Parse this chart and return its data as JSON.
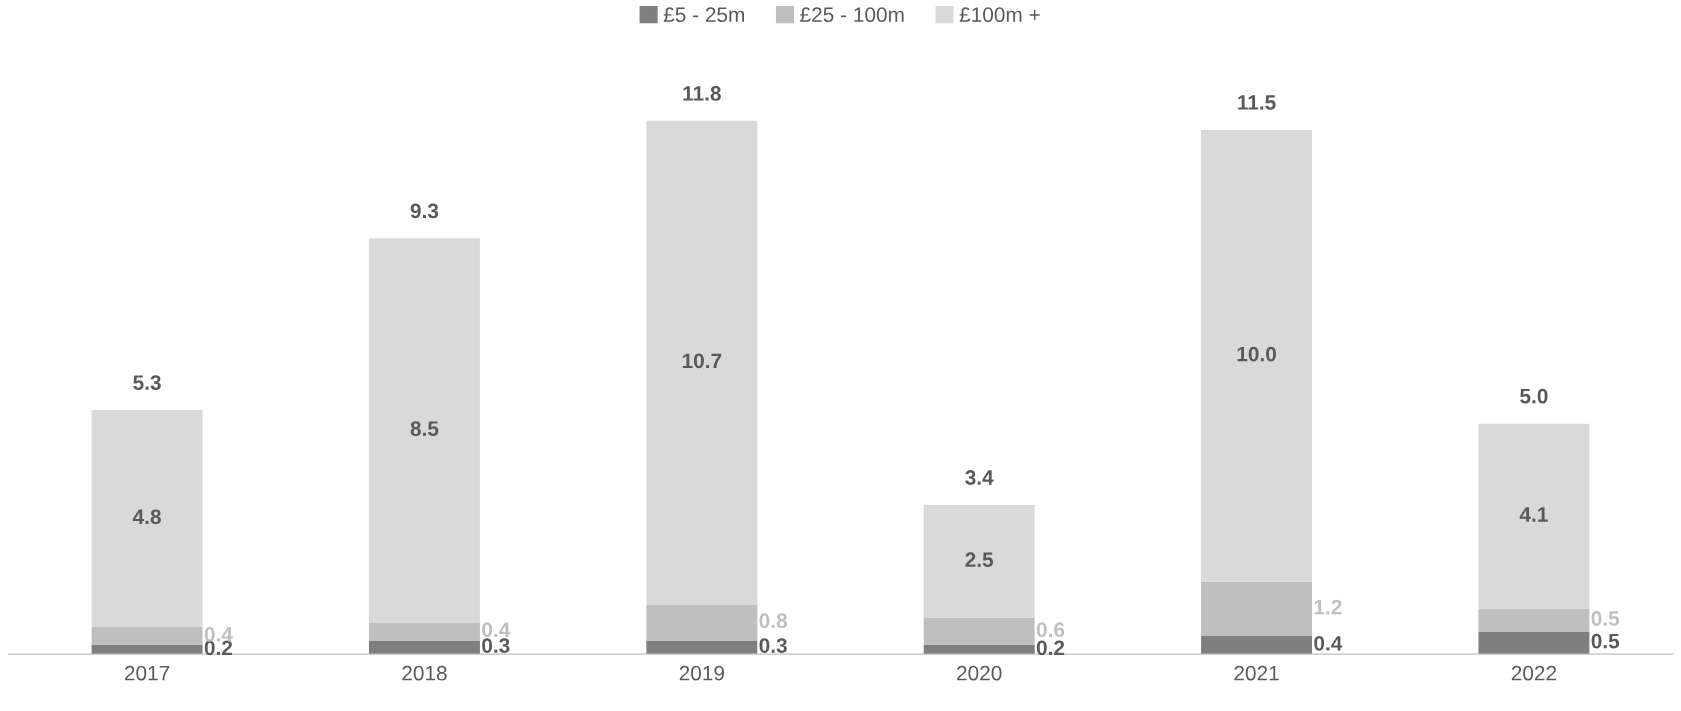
{
  "chart_data": {
    "type": "bar",
    "stacked": true,
    "legend": "top",
    "grid": false,
    "categories": [
      "2017",
      "2018",
      "2019",
      "2020",
      "2021",
      "2022"
    ],
    "series": [
      {
        "name": "£5 - 25m",
        "color": "#7f7f7f",
        "values": [
          0.2,
          0.3,
          0.3,
          0.2,
          0.4,
          0.5
        ],
        "value_labels": [
          "0.2",
          "0.3",
          "0.3",
          "0.2",
          "0.4",
          "0.5"
        ]
      },
      {
        "name": "£25 - 100m",
        "color": "#bfbfbf",
        "values": [
          0.4,
          0.4,
          0.8,
          0.6,
          1.2,
          0.5
        ],
        "value_labels": [
          "0.4",
          "0.4",
          "0.8",
          "0.6",
          "1.2",
          "0.5"
        ]
      },
      {
        "name": "£100m +",
        "color": "#d9d9d9",
        "values": [
          4.8,
          8.5,
          10.7,
          2.5,
          10.0,
          4.1
        ],
        "value_labels": [
          "4.8",
          "8.5",
          "10.7",
          "2.5",
          "10.0",
          "4.1"
        ]
      }
    ],
    "totals": [
      "5.3",
      "9.3",
      "11.8",
      "3.4",
      "11.5",
      "5.0"
    ]
  }
}
